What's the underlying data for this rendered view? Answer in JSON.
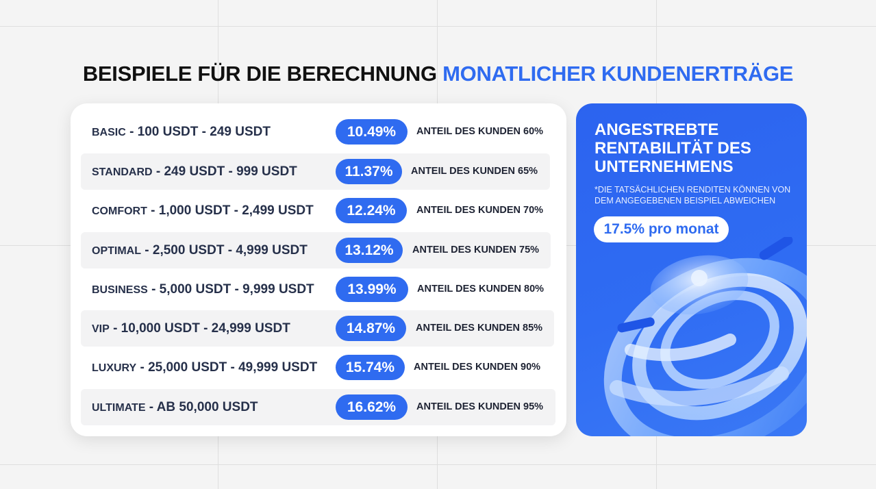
{
  "heading": {
    "part1": "BEISPIELE FÜR DIE BERECHNUNG",
    "part2": "MONATLICHER KUNDENERTRÄGE"
  },
  "tiers": [
    {
      "name": "BASIC",
      "range": "- 100 USDT - 249 USDT",
      "rate": "10.49%",
      "share": "ANTEIL DES KUNDEN 60%"
    },
    {
      "name": "STANDARD",
      "range": "- 249 USDT - 999 USDT",
      "rate": "11.37%",
      "share": "ANTEIL DES KUNDEN 65%"
    },
    {
      "name": "COMFORT",
      "range": "- 1,000 USDT - 2,499 USDT",
      "rate": "12.24%",
      "share": "ANTEIL DES KUNDEN 70%"
    },
    {
      "name": "OPTIMAL",
      "range": "- 2,500 USDT - 4,999 USDT",
      "rate": "13.12%",
      "share": "ANTEIL DES KUNDEN 75%"
    },
    {
      "name": "BUSINESS",
      "range": "- 5,000 USDT - 9,999 USDT",
      "rate": "13.99%",
      "share": "ANTEIL DES KUNDEN 80%"
    },
    {
      "name": "VIP",
      "range": "- 10,000 USDT - 24,999 USDT",
      "rate": "14.87%",
      "share": "ANTEIL DES KUNDEN 85%"
    },
    {
      "name": "LUXURY",
      "range": "- 25,000 USDT - 49,999 USDT",
      "rate": "15.74%",
      "share": "ANTEIL DES KUNDEN 90%"
    },
    {
      "name": "ULTIMATE",
      "range": " - AB 50,000 USDT",
      "rate": "16.62%",
      "share": "ANTEIL DES KUNDEN 95%"
    }
  ],
  "target_card": {
    "title": "ANGESTREBTE RENTABILITÄT DES UNTERNEHMENS",
    "note": "*DIE TATSÄCHLICHEN RENDITEN KÖNNEN VON DEM ANGEGEBENEN BEISPIEL ABWEICHEN",
    "rate": "17.5% pro monat"
  },
  "colors": {
    "accent": "#2f6bf0",
    "background": "#f4f4f4",
    "card": "#ffffff",
    "row_shade": "#f3f3f4"
  },
  "icons": {
    "decoration": "abstract-3d-rings-graphic"
  }
}
